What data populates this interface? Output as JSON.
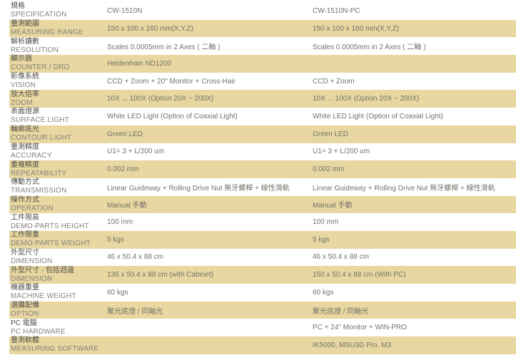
{
  "colors": {
    "row_shade": "#e8d7a0",
    "label_zh_text": "#4f4e49",
    "label_en_text": "#83827a",
    "value_text": "#73726b",
    "background": "#ffffff"
  },
  "table": {
    "model_columns": [
      "CW-1510N",
      "CW-1510N-PC"
    ],
    "rows": [
      {
        "zh": "規格",
        "en": "SPECIFICATION",
        "v1": "CW-1510N",
        "v2": "CW-1510N-PC",
        "shaded": false
      },
      {
        "zh": "量測範圍",
        "en": "MEASURING RANGE",
        "v1": "150 x 100 x 160 mm(X,Y,Z)",
        "v2": "150 x 100 x 160 mm(X,Y,Z)",
        "shaded": true
      },
      {
        "zh": "解析讀數",
        "en": "RESOLUTION",
        "v1": "Scales 0.0005mm in 2 Axes ( 二軸 )",
        "v2": "Scales 0.0005mm in 2 Axes ( 二軸 )",
        "shaded": false
      },
      {
        "zh": "顯示器",
        "en": "COUNTER / DRO",
        "v1": "Heidenhain ND1200",
        "v2": "",
        "shaded": true
      },
      {
        "zh": "影像系統",
        "en": "VISION",
        "v1": "CCD + Zoom + 20\" Monitor + Cross-Hair",
        "v2": "CCD + Zoom",
        "shaded": false
      },
      {
        "zh": "放大倍率",
        "en": "ZOOM",
        "v1": "10X ... 100X (Option 20X ~ 200X)",
        "v2": "10X ... 100X (Option 20X ~ 200X)",
        "shaded": true
      },
      {
        "zh": "表面燈源",
        "en": "SURFACE LIGHT",
        "v1": "White LED Light (Option of Coaxial Light)",
        "v2": "White LED Light (Option of Coaxial Light)",
        "shaded": false
      },
      {
        "zh": "輪廓底光",
        "en": "CONTOUR LIGHT",
        "v1": "Green LED",
        "v2": "Green LED",
        "shaded": true
      },
      {
        "zh": "量測精度",
        "en": "ACCURACY",
        "v1": "U1= 3 + L/200 um",
        "v2": "U1= 3 + L/200 um",
        "shaded": false
      },
      {
        "zh": "重複精度",
        "en": "REPEATABILITY",
        "v1": "0.002 mm",
        "v2": "0.002 mm",
        "shaded": true
      },
      {
        "zh": "傳動方式",
        "en": "TRANSMISSION",
        "v1": "Linear Guideway + Rolling Drive Nut 無牙螺桿 + 線性滑軌",
        "v2": "Linear Guideway + Rolling Drive Nut 無牙螺桿 + 線性滑軌",
        "shaded": false
      },
      {
        "zh": "操作方式",
        "en": "OPERATION",
        "v1": "Manual 手動",
        "v2": "Manual 手動",
        "shaded": true
      },
      {
        "zh": "工件限高",
        "en": "DEMO-PARTS HEIGHT",
        "v1": "100 mm",
        "v2": "100 mm",
        "shaded": false
      },
      {
        "zh": "工作限重",
        "en": "DEMO-PARTS WEIGHT",
        "v1": "5 kgs",
        "v2": "5 kgs",
        "shaded": true
      },
      {
        "zh": "外型尺寸",
        "en": "DIMENSION",
        "v1": "46 x 50.4 x 88 cm",
        "v2": "46 x 50.4 x 88 cm",
        "shaded": false
      },
      {
        "zh": "外型尺寸 - 包括週邊",
        "en": "DIMENSION",
        "v1": "136 x 50.4 x 88 cm (with Cabinet)",
        "v2": "150 x 50.4 x 88 cm (With PC)",
        "shaded": true
      },
      {
        "zh": "機器重量",
        "en": "MACHINE WEIGHT",
        "v1": "60 kgs",
        "v2": "60 kgs",
        "shaded": false
      },
      {
        "zh": "選購配備",
        "en": "OPTION",
        "v1": "聚光底燈 / 同軸光",
        "v2": "聚光底燈 / 同軸光",
        "shaded": true
      },
      {
        "zh": "PC 電腦",
        "en": "PC HARDWARE",
        "v1": "",
        "v2": "PC + 24\" Monitor + WIN-PRO",
        "shaded": false
      },
      {
        "zh": "量測軟體",
        "en": "MEASURING SOFTWARE",
        "v1": "",
        "v2": "IK5000, MSU3D Pro, M3",
        "shaded": true
      }
    ]
  }
}
